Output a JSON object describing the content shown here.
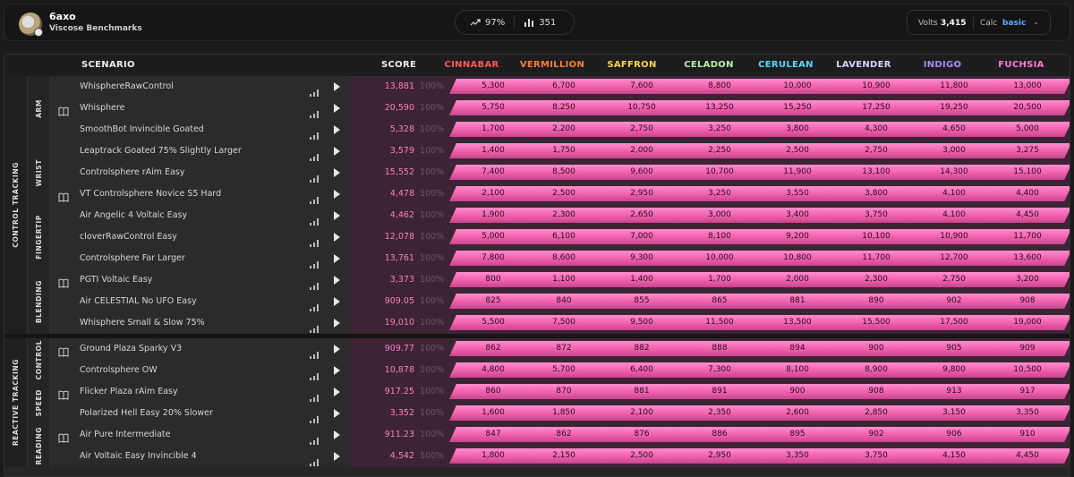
{
  "user": {
    "name": "6axo",
    "subtitle": "Viscose Benchmarks"
  },
  "stats": {
    "percent": "97%",
    "count": "351"
  },
  "settings": {
    "volts_label": "Volts",
    "volts_value": "3,415",
    "calc_label": "Calc",
    "calc_value": "basic"
  },
  "headers": {
    "scenario": "SCENARIO",
    "score": "SCORE"
  },
  "ranks": [
    {
      "name": "CINNABAR",
      "color": "#ff5757"
    },
    {
      "name": "VERMILLION",
      "color": "#ff7a3a"
    },
    {
      "name": "SAFFRON",
      "color": "#ffd24a"
    },
    {
      "name": "CELADON",
      "color": "#b4f0a8"
    },
    {
      "name": "CERULEAN",
      "color": "#57d8ff"
    },
    {
      "name": "LAVENDER",
      "color": "#d9d2ff"
    },
    {
      "name": "INDIGO",
      "color": "#a98bff"
    },
    {
      "name": "FUCHSIA",
      "color": "#ff79d7"
    }
  ],
  "categories": [
    {
      "name": "CONTROL TRACKING",
      "subcategories": [
        {
          "name": "ARM",
          "rows": [
            {
              "book": false,
              "name": "WhisphereRawControl",
              "score": "13,881",
              "pct": "100%",
              "thresholds": [
                "5,300",
                "6,700",
                "7,600",
                "8,800",
                "10,000",
                "10,900",
                "11,800",
                "13,000"
              ]
            },
            {
              "book": true,
              "name": "Whisphere",
              "score": "20,590",
              "pct": "100%",
              "thresholds": [
                "5,750",
                "8,250",
                "10,750",
                "13,250",
                "15,250",
                "17,250",
                "19,250",
                "20,500"
              ]
            },
            {
              "book": false,
              "name": "SmoothBot Invincible Goated",
              "score": "5,328",
              "pct": "100%",
              "thresholds": [
                "1,700",
                "2,200",
                "2,750",
                "3,250",
                "3,800",
                "4,300",
                "4,650",
                "5,000"
              ]
            }
          ]
        },
        {
          "name": "WRIST",
          "rows": [
            {
              "book": false,
              "name": "Leaptrack Goated 75% Slightly Larger",
              "score": "3,579",
              "pct": "100%",
              "thresholds": [
                "1,400",
                "1,750",
                "2,000",
                "2,250",
                "2,500",
                "2,750",
                "3,000",
                "3,275"
              ]
            },
            {
              "book": false,
              "name": "Controlsphere rAim Easy",
              "score": "15,552",
              "pct": "100%",
              "thresholds": [
                "7,400",
                "8,500",
                "9,600",
                "10,700",
                "11,900",
                "13,100",
                "14,300",
                "15,100"
              ]
            },
            {
              "book": true,
              "name": "VT Controlsphere Novice S5 Hard",
              "score": "4,478",
              "pct": "100%",
              "thresholds": [
                "2,100",
                "2,500",
                "2,950",
                "3,250",
                "3,550",
                "3,800",
                "4,100",
                "4,400"
              ]
            }
          ]
        },
        {
          "name": "FINGERTIP",
          "rows": [
            {
              "book": false,
              "name": "Air Angelic 4 Voltaic Easy",
              "score": "4,462",
              "pct": "100%",
              "thresholds": [
                "1,900",
                "2,300",
                "2,650",
                "3,000",
                "3,400",
                "3,750",
                "4,100",
                "4,450"
              ]
            },
            {
              "book": false,
              "name": "cloverRawControl Easy",
              "score": "12,078",
              "pct": "100%",
              "thresholds": [
                "5,000",
                "6,100",
                "7,000",
                "8,100",
                "9,200",
                "10,100",
                "10,900",
                "11,700"
              ]
            },
            {
              "book": false,
              "name": "Controlsphere Far Larger",
              "score": "13,761",
              "pct": "100%",
              "thresholds": [
                "7,800",
                "8,600",
                "9,300",
                "10,000",
                "10,800",
                "11,700",
                "12,700",
                "13,600"
              ]
            }
          ]
        },
        {
          "name": "BLENDING",
          "rows": [
            {
              "book": true,
              "name": "PGTI Voltaic Easy",
              "score": "3,373",
              "pct": "100%",
              "thresholds": [
                "800",
                "1,100",
                "1,400",
                "1,700",
                "2,000",
                "2,300",
                "2,750",
                "3,200"
              ]
            },
            {
              "book": false,
              "name": "Air CELESTIAL No UFO Easy",
              "score": "909.05",
              "pct": "100%",
              "thresholds": [
                "825",
                "840",
                "855",
                "865",
                "881",
                "890",
                "902",
                "908"
              ]
            },
            {
              "book": false,
              "name": "Whisphere Small & Slow 75%",
              "score": "19,010",
              "pct": "100%",
              "thresholds": [
                "5,500",
                "7,500",
                "9,500",
                "11,500",
                "13,500",
                "15,500",
                "17,500",
                "19,000"
              ]
            }
          ]
        }
      ]
    },
    {
      "name": "REACTIVE TRACKING",
      "subcategories": [
        {
          "name": "CONTROL",
          "rows": [
            {
              "book": true,
              "name": "Ground Plaza Sparky V3",
              "score": "909.77",
              "pct": "100%",
              "thresholds": [
                "862",
                "872",
                "882",
                "888",
                "894",
                "900",
                "905",
                "909"
              ]
            },
            {
              "book": false,
              "name": "Controlsphere OW",
              "score": "10,878",
              "pct": "100%",
              "thresholds": [
                "4,800",
                "5,700",
                "6,400",
                "7,300",
                "8,100",
                "8,900",
                "9,800",
                "10,500"
              ]
            }
          ]
        },
        {
          "name": "SPEED",
          "rows": [
            {
              "book": true,
              "name": "Flicker Plaza rAim Easy",
              "score": "917.25",
              "pct": "100%",
              "thresholds": [
                "860",
                "870",
                "881",
                "891",
                "900",
                "908",
                "913",
                "917"
              ]
            },
            {
              "book": false,
              "name": "Polarized Hell Easy 20% Slower",
              "score": "3,352",
              "pct": "100%",
              "thresholds": [
                "1,600",
                "1,850",
                "2,100",
                "2,350",
                "2,600",
                "2,850",
                "3,150",
                "3,350"
              ]
            }
          ]
        },
        {
          "name": "READING",
          "rows": [
            {
              "book": true,
              "name": "Air Pure Intermediate",
              "score": "911.23",
              "pct": "100%",
              "thresholds": [
                "847",
                "862",
                "876",
                "886",
                "895",
                "902",
                "906",
                "910"
              ]
            },
            {
              "book": false,
              "name": "Air Voltaic Easy Invincible 4",
              "score": "4,542",
              "pct": "100%",
              "thresholds": [
                "1,800",
                "2,150",
                "2,500",
                "2,950",
                "3,350",
                "3,750",
                "4,150",
                "4,450"
              ]
            }
          ]
        }
      ]
    }
  ]
}
